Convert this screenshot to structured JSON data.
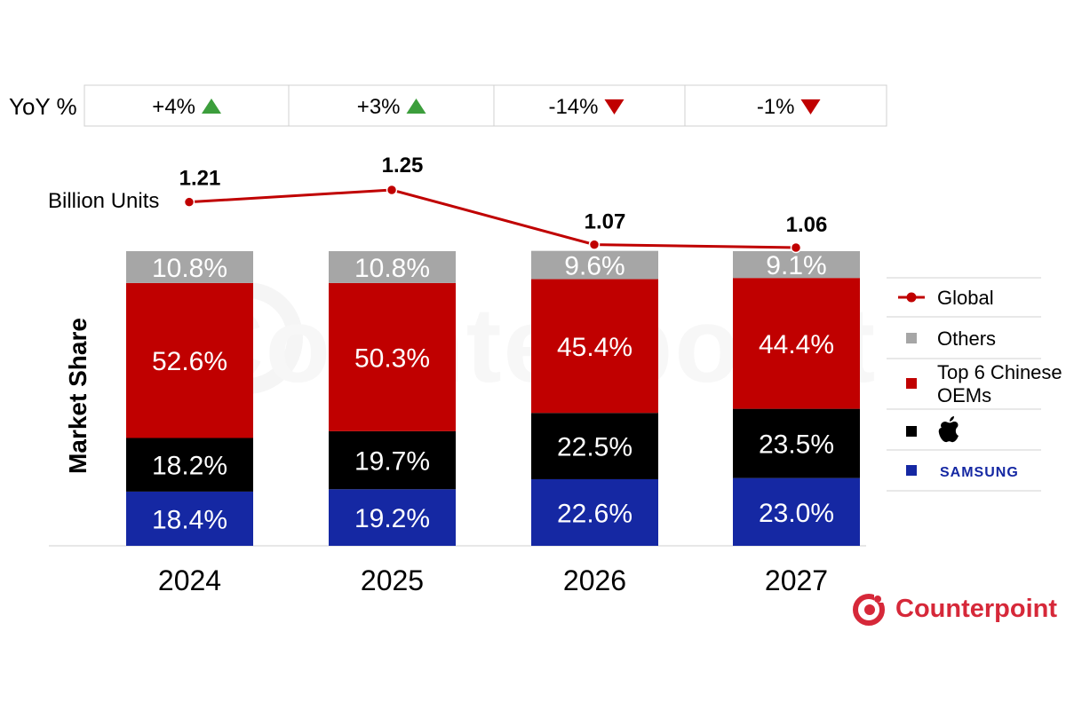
{
  "yoy": {
    "label": "YoY %",
    "items": [
      {
        "text": "+4%",
        "dir": "up"
      },
      {
        "text": "+3%",
        "dir": "up"
      },
      {
        "text": "-14%",
        "dir": "down"
      },
      {
        "text": "-1%",
        "dir": "down"
      }
    ]
  },
  "brand": "Counterpoint",
  "colors": {
    "others": "#a6a6a6",
    "chinese": "#c00000",
    "apple": "#000000",
    "samsung": "#1528a3",
    "line": "#c00000",
    "up": "#3c9e3c",
    "down": "#c00000",
    "brand": "#d62839"
  },
  "chart_data": {
    "type": "bar",
    "stacked": true,
    "categories": [
      "2024",
      "2025",
      "2026",
      "2027"
    ],
    "ylabel": "Market Share",
    "series": [
      {
        "key": "samsung",
        "name": "SAMSUNG",
        "values": [
          18.4,
          19.2,
          22.6,
          23.0
        ],
        "labels": [
          "18.4%",
          "19.2%",
          "22.6%",
          "23.0%"
        ]
      },
      {
        "key": "apple",
        "name": "",
        "icon": "apple-logo-icon",
        "values": [
          18.2,
          19.7,
          22.5,
          23.5
        ],
        "labels": [
          "18.2%",
          "19.7%",
          "22.5%",
          "23.5%"
        ]
      },
      {
        "key": "chinese",
        "name": "Top 6 Chinese OEMs",
        "values": [
          52.6,
          50.3,
          45.4,
          44.4
        ],
        "labels": [
          "52.6%",
          "50.3%",
          "45.4%",
          "44.4%"
        ]
      },
      {
        "key": "others",
        "name": "Others",
        "values": [
          10.8,
          10.8,
          9.6,
          9.1
        ],
        "labels": [
          "10.8%",
          "10.8%",
          "9.6%",
          "9.1%"
        ]
      }
    ],
    "line": {
      "name": "Global",
      "unit_label": "Billion Units",
      "values": [
        1.21,
        1.25,
        1.07,
        1.06
      ],
      "labels": [
        "1.21",
        "1.25",
        "1.07",
        "1.06"
      ]
    },
    "legend": [
      {
        "key": "global",
        "label": "Global",
        "kind": "line"
      },
      {
        "key": "others",
        "label": "Others",
        "kind": "square"
      },
      {
        "key": "chinese",
        "label": "Top 6 Chinese OEMs",
        "kind": "square"
      },
      {
        "key": "apple",
        "label": "",
        "kind": "square",
        "icon": "apple-logo-icon"
      },
      {
        "key": "samsung",
        "label": "SAMSUNG",
        "kind": "square"
      }
    ],
    "legend_position": "right"
  }
}
